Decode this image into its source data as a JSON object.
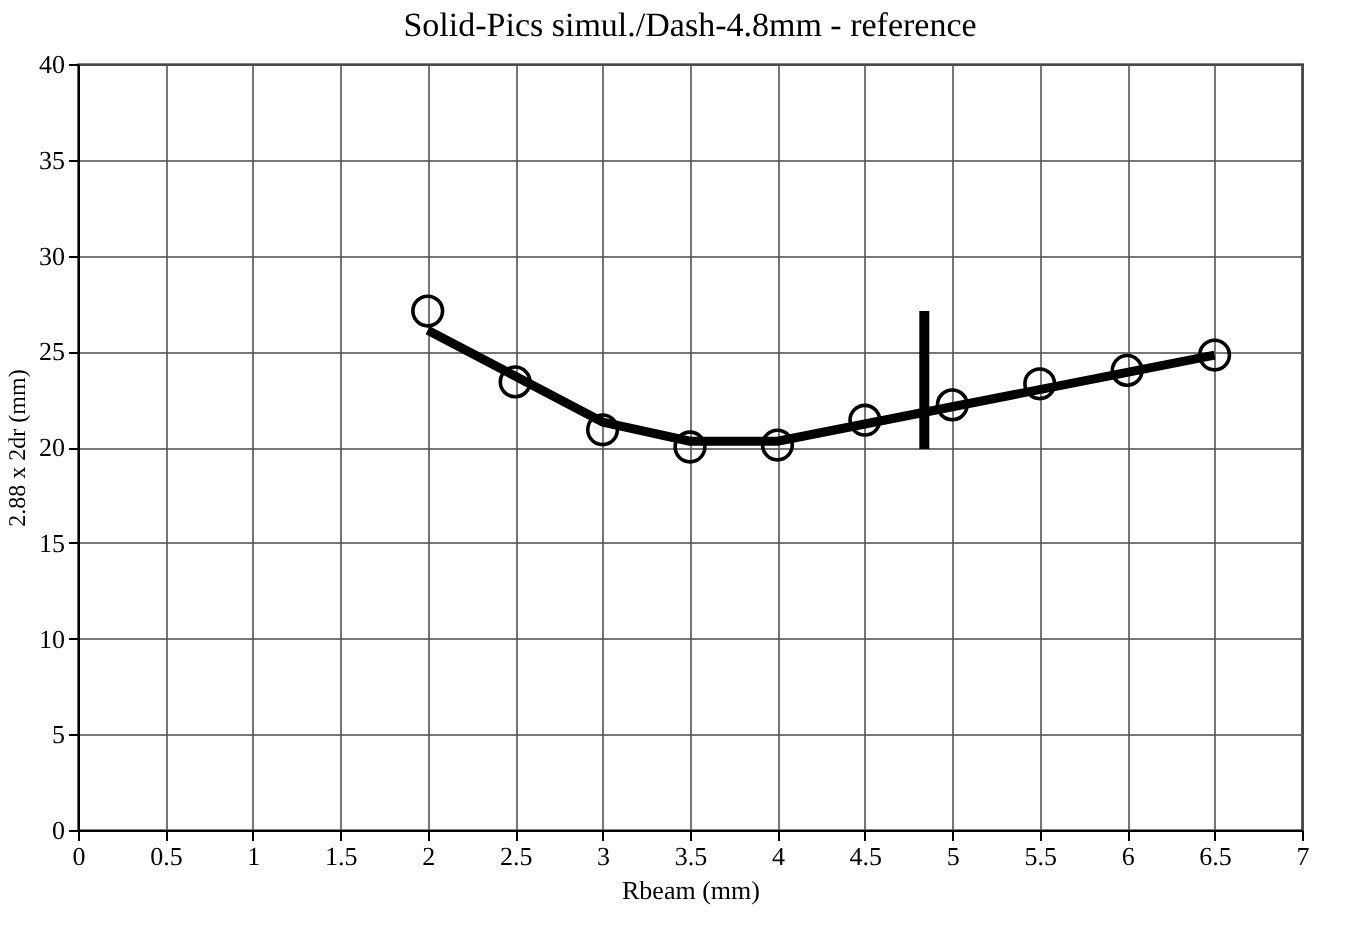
{
  "chart_data": {
    "type": "scatter",
    "title": "Solid-Pics simul./Dash-4.8mm - reference",
    "xlabel": "Rbeam (mm)",
    "ylabel": "2.88 x 2dr (mm)",
    "xlim": [
      0,
      7
    ],
    "xticks": [
      0,
      0.5,
      1,
      1.5,
      2,
      2.5,
      3,
      3.5,
      4,
      4.5,
      5,
      5.5,
      6,
      6.5,
      7
    ],
    "ylim": [
      0,
      40
    ],
    "yticks": [
      0,
      5,
      10,
      15,
      20,
      25,
      30,
      35,
      40
    ],
    "grid": true,
    "series": [
      {
        "marker": "circle",
        "color": "#000000",
        "x": [
          2,
          2.5,
          3,
          3.5,
          4,
          4.5,
          5,
          5.5,
          6,
          6.5
        ],
        "values": [
          27.1,
          23.4,
          20.9,
          20.0,
          20.1,
          21.4,
          22.2,
          23.3,
          24.0,
          24.8
        ]
      },
      {
        "type": "line",
        "color": "#000000",
        "x": [
          2,
          3,
          3.5,
          4,
          5,
          6,
          6.5
        ],
        "values": [
          26.1,
          21.3,
          20.3,
          20.3,
          22.1,
          23.9,
          24.8
        ]
      },
      {
        "type": "line",
        "color": "#000000",
        "x": [
          4.84,
          4.84
        ],
        "values": [
          27.1,
          19.9
        ]
      }
    ]
  }
}
